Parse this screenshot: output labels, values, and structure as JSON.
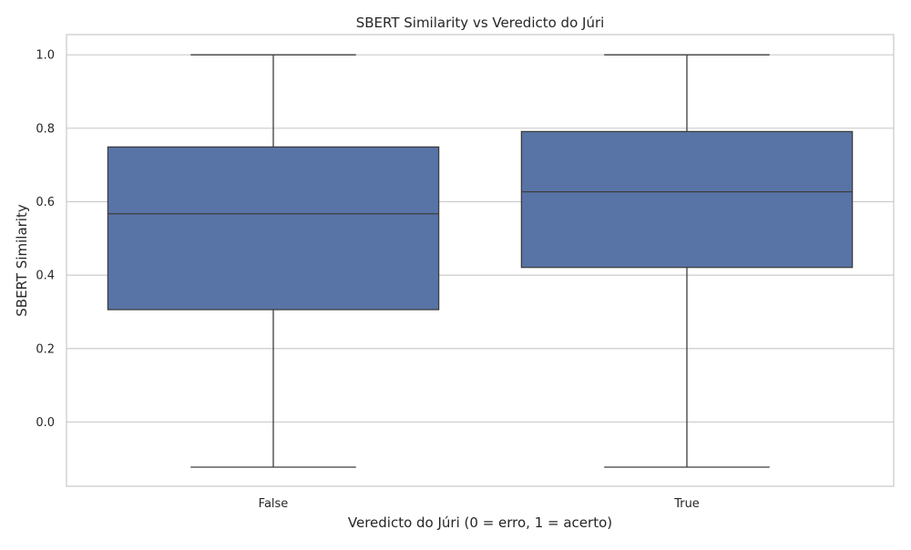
{
  "chart_data": {
    "type": "box",
    "title": "SBERT Similarity vs Veredicto do Júri",
    "xlabel": "Veredicto do Júri (0 = erro, 1 = acerto)",
    "ylabel": "SBERT Similarity",
    "ylim": [
      -0.175,
      1.055
    ],
    "yticks": [
      0.0,
      0.2,
      0.4,
      0.6,
      0.8,
      1.0
    ],
    "ytick_labels": [
      "0.0",
      "0.2",
      "0.4",
      "0.6",
      "0.8",
      "1.0"
    ],
    "grid": true,
    "categories": [
      "False",
      "True"
    ],
    "boxes": [
      {
        "category": "False",
        "whisker_low": -0.123,
        "q1": 0.306,
        "median": 0.567,
        "q3": 0.749,
        "whisker_high": 1.0
      },
      {
        "category": "True",
        "whisker_low": -0.123,
        "q1": 0.421,
        "median": 0.627,
        "q3": 0.791,
        "whisker_high": 1.0
      }
    ],
    "colors": {
      "box_fill": "#5874a6",
      "line": "#3d3d3d",
      "grid": "#cccccc",
      "frame": "#cccccc"
    }
  }
}
